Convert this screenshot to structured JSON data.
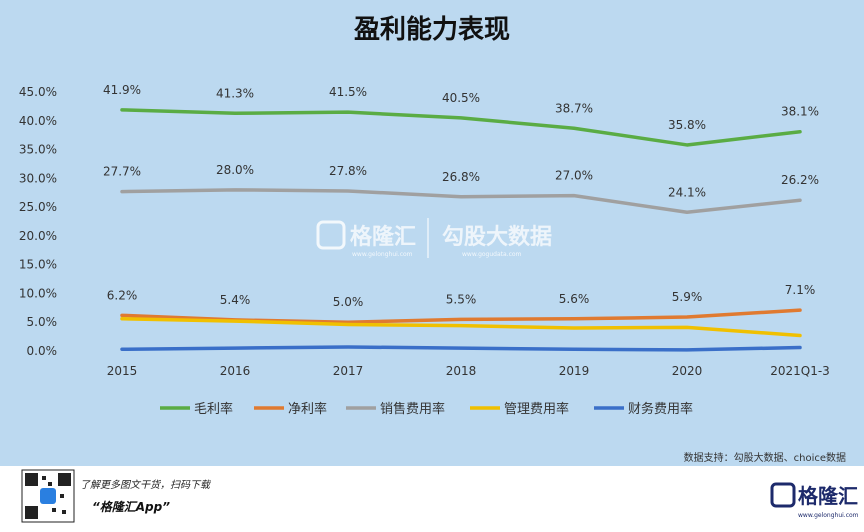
{
  "chart_data": {
    "type": "line",
    "title": "盈利能力表现",
    "categories": [
      "2015",
      "2016",
      "2017",
      "2018",
      "2019",
      "2020",
      "2021Q1-3"
    ],
    "ylim": [
      0,
      45
    ],
    "yticks": [
      "0.0%",
      "5.0%",
      "10.0%",
      "15.0%",
      "20.0%",
      "25.0%",
      "30.0%",
      "35.0%",
      "40.0%",
      "45.0%"
    ],
    "grid": false,
    "legend_position": "bottom",
    "series": [
      {
        "name": "毛利率",
        "color": "#5aac44",
        "values": [
          41.9,
          41.3,
          41.5,
          40.5,
          38.7,
          35.8,
          38.1
        ],
        "labels": [
          "41.9%",
          "41.3%",
          "41.5%",
          "40.5%",
          "38.7%",
          "35.8%",
          "38.1%"
        ]
      },
      {
        "name": "净利率",
        "color": "#e07a30",
        "values": [
          6.2,
          5.4,
          5.0,
          5.5,
          5.6,
          5.9,
          7.1
        ],
        "labels": [
          "6.2%",
          "5.4%",
          "5.0%",
          "5.5%",
          "5.6%",
          "5.9%",
          "7.1%"
        ]
      },
      {
        "name": "销售费用率",
        "color": "#a0a0a0",
        "values": [
          27.7,
          28.0,
          27.8,
          26.8,
          27.0,
          24.1,
          26.2
        ],
        "labels": [
          "27.7%",
          "28.0%",
          "27.8%",
          "26.8%",
          "27.0%",
          "24.1%",
          "26.2%"
        ]
      },
      {
        "name": "管理费用率",
        "color": "#f0c000",
        "values": [
          5.6,
          5.2,
          4.6,
          4.4,
          4.0,
          4.1,
          2.7
        ],
        "labels": []
      },
      {
        "name": "财务费用率",
        "color": "#3a6fc8",
        "values": [
          0.3,
          0.5,
          0.7,
          0.5,
          0.3,
          0.2,
          0.6
        ],
        "labels": []
      }
    ]
  },
  "source_note": "数据支持：勾股大数据、choice数据",
  "footer": {
    "qr_caption": "了解更多图文干货，扫码下载",
    "app_name": "“格隆汇App”",
    "brand": "格隆汇",
    "brand_sub": "www.gelonghui.com"
  },
  "watermark": {
    "left": "格隆汇",
    "left_sub": "www.gelonghui.com",
    "right": "勾股大数据",
    "right_sub": "www.gogudata.com"
  }
}
